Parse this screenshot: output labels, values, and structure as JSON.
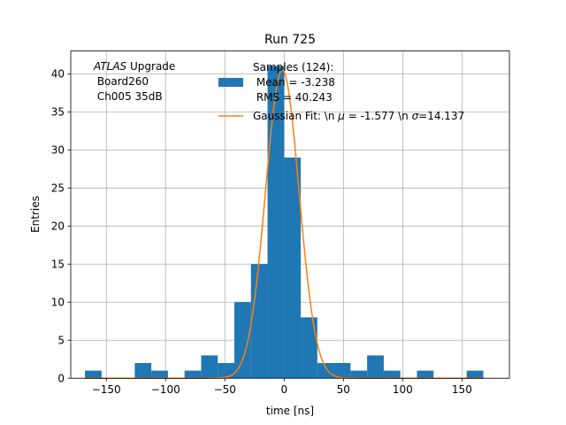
{
  "chart_data": {
    "type": "bar",
    "title": "Run 725",
    "xlabel": "time [ns]",
    "ylabel": "Entries",
    "xlim": [
      -180,
      190
    ],
    "ylim": [
      0,
      43
    ],
    "grid": true,
    "x_ticks": [
      -150,
      -100,
      -50,
      0,
      50,
      100,
      150
    ],
    "x_tick_labels": [
      "−150",
      "−100",
      "−50",
      "0",
      "50",
      "100",
      "150"
    ],
    "y_ticks": [
      0,
      5,
      10,
      15,
      20,
      25,
      30,
      35,
      40
    ],
    "y_tick_labels": [
      "0",
      "5",
      "10",
      "15",
      "20",
      "25",
      "30",
      "35",
      "40"
    ],
    "annotation": {
      "lines": [
        "ATLAS Upgrade",
        " Board260",
        " Ch005 35dB"
      ],
      "italic_word": "ATLAS",
      "rest_of_first_line": " Upgrade"
    },
    "legend": {
      "placement": "upper-right",
      "histogram_label_lines": [
        "Samples (124):",
        " Mean = -3.238",
        " RMS = 40.243"
      ],
      "fit_label_prefix": "Gaussian Fit: \\n ",
      "fit_label_mu_symbol": "μ",
      "fit_label_mu_value": " = -1.577 \\n ",
      "fit_label_sigma_symbol": "σ",
      "fit_label_sigma_value": "=14.137"
    },
    "histogram": {
      "name": "Samples (124)",
      "color": "#1f77b4",
      "bin_width": 14,
      "bin_edges_start": -168,
      "bins": [
        {
          "x0": -168,
          "x1": -154,
          "count": 1
        },
        {
          "x0": -126,
          "x1": -112,
          "count": 2
        },
        {
          "x0": -112,
          "x1": -98,
          "count": 1
        },
        {
          "x0": -84,
          "x1": -70,
          "count": 1
        },
        {
          "x0": -70,
          "x1": -56,
          "count": 3
        },
        {
          "x0": -56,
          "x1": -42,
          "count": 2
        },
        {
          "x0": -42,
          "x1": -28,
          "count": 10
        },
        {
          "x0": -28,
          "x1": -14,
          "count": 15
        },
        {
          "x0": -14,
          "x1": 0,
          "count": 41
        },
        {
          "x0": 0,
          "x1": 14,
          "count": 29
        },
        {
          "x0": 14,
          "x1": 28,
          "count": 8
        },
        {
          "x0": 28,
          "x1": 42,
          "count": 2
        },
        {
          "x0": 42,
          "x1": 56,
          "count": 2
        },
        {
          "x0": 56,
          "x1": 70,
          "count": 1
        },
        {
          "x0": 70,
          "x1": 84,
          "count": 3
        },
        {
          "x0": 84,
          "x1": 98,
          "count": 1
        },
        {
          "x0": 112,
          "x1": 126,
          "count": 1
        },
        {
          "x0": 154,
          "x1": 168,
          "count": 1
        }
      ]
    },
    "gaussian_fit": {
      "name": "Gaussian Fit",
      "color": "#ff7f0e",
      "mu": -1.577,
      "sigma": 14.137,
      "amplitude": 40.5,
      "x_range": [
        -168,
        168
      ]
    }
  }
}
